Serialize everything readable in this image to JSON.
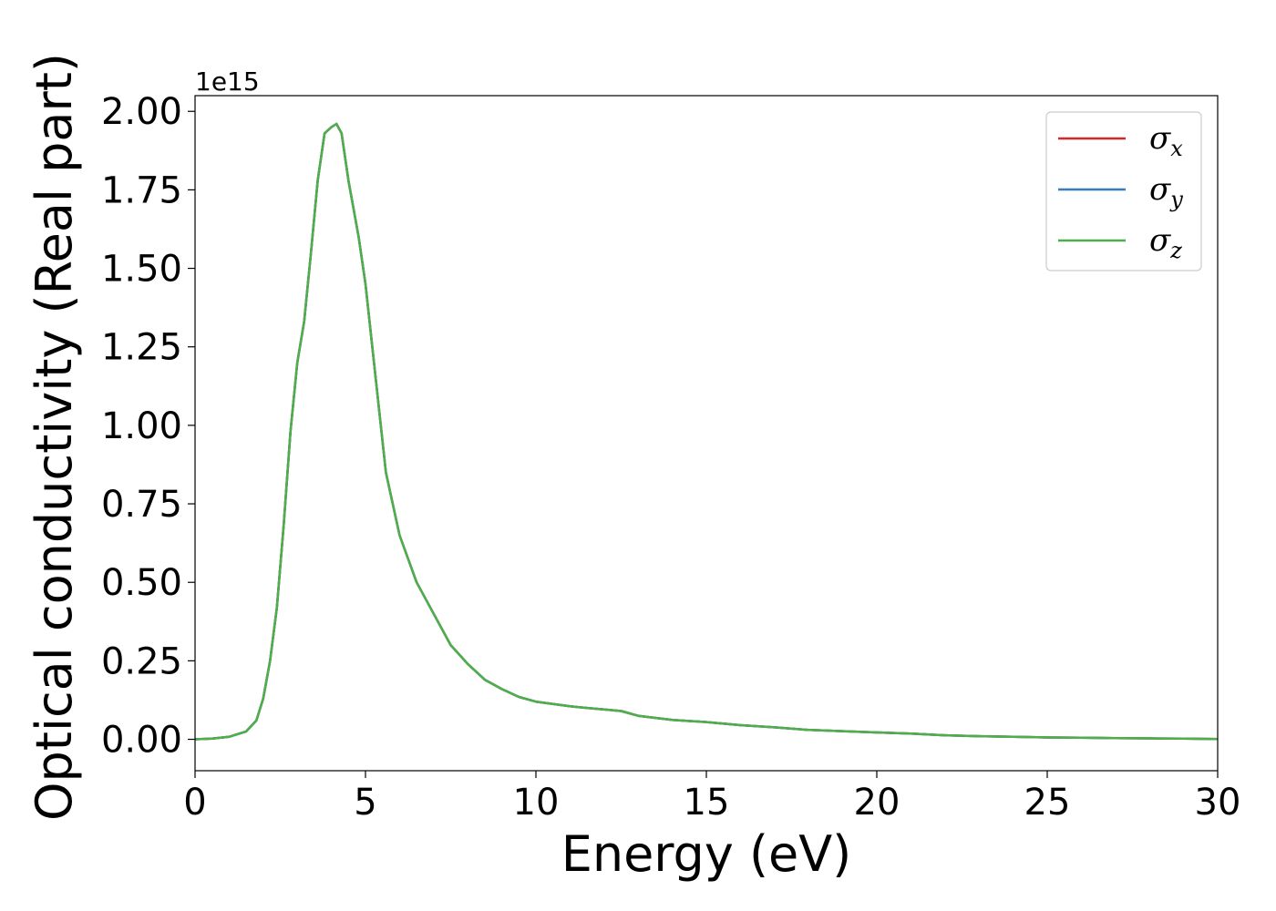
{
  "chart_data": {
    "type": "line",
    "title": "",
    "xlabel": "Energy (eV)",
    "ylabel": "Optical conductivity (Real part)",
    "y_offset_label": "1e15",
    "xlim": [
      0,
      30
    ],
    "ylim": [
      -0.1,
      2.05
    ],
    "xticks": [
      0,
      5,
      10,
      15,
      20,
      25,
      30
    ],
    "yticks": [
      0.0,
      0.25,
      0.5,
      0.75,
      1.0,
      1.25,
      1.5,
      1.75,
      2.0
    ],
    "xtick_labels": [
      "0",
      "5",
      "10",
      "15",
      "20",
      "25",
      "30"
    ],
    "ytick_labels": [
      "0.00",
      "0.25",
      "0.50",
      "0.75",
      "1.00",
      "1.25",
      "1.50",
      "1.75",
      "2.00"
    ],
    "grid": false,
    "legend_position": "top-right",
    "x": [
      0,
      0.5,
      1.0,
      1.5,
      1.8,
      2.0,
      2.2,
      2.4,
      2.6,
      2.8,
      3.0,
      3.2,
      3.4,
      3.6,
      3.8,
      4.0,
      4.15,
      4.3,
      4.5,
      4.8,
      5.0,
      5.3,
      5.6,
      6.0,
      6.5,
      7.0,
      7.5,
      8.0,
      8.5,
      9.0,
      9.5,
      10.0,
      11.0,
      11.5,
      12.0,
      12.5,
      13.0,
      14.0,
      15.0,
      16.0,
      17.0,
      18.0,
      19.0,
      20.0,
      21.0,
      22.0,
      23.0,
      24.0,
      25.0,
      26.0,
      27.0,
      28.0,
      29.0,
      30.0
    ],
    "series": [
      {
        "name": "σ_x",
        "legend_main": "σ",
        "legend_sub": "x",
        "color": "#d62728",
        "values": [
          0.0,
          0.002,
          0.008,
          0.025,
          0.06,
          0.13,
          0.25,
          0.42,
          0.68,
          0.98,
          1.2,
          1.33,
          1.55,
          1.78,
          1.93,
          1.95,
          1.96,
          1.93,
          1.78,
          1.6,
          1.45,
          1.15,
          0.85,
          0.65,
          0.5,
          0.4,
          0.3,
          0.24,
          0.19,
          0.16,
          0.135,
          0.12,
          0.105,
          0.1,
          0.095,
          0.09,
          0.075,
          0.062,
          0.055,
          0.045,
          0.038,
          0.03,
          0.026,
          0.022,
          0.018,
          0.013,
          0.01,
          0.008,
          0.006,
          0.005,
          0.004,
          0.003,
          0.002,
          0.001
        ]
      },
      {
        "name": "σ_y",
        "legend_main": "σ",
        "legend_sub": "y",
        "color": "#377eb8",
        "values": [
          0.0,
          0.002,
          0.008,
          0.025,
          0.06,
          0.13,
          0.25,
          0.42,
          0.68,
          0.98,
          1.2,
          1.33,
          1.55,
          1.78,
          1.93,
          1.95,
          1.96,
          1.93,
          1.78,
          1.6,
          1.45,
          1.15,
          0.85,
          0.65,
          0.5,
          0.4,
          0.3,
          0.24,
          0.19,
          0.16,
          0.135,
          0.12,
          0.105,
          0.1,
          0.095,
          0.09,
          0.075,
          0.062,
          0.055,
          0.045,
          0.038,
          0.03,
          0.026,
          0.022,
          0.018,
          0.013,
          0.01,
          0.008,
          0.006,
          0.005,
          0.004,
          0.003,
          0.002,
          0.001
        ]
      },
      {
        "name": "σ_z",
        "legend_main": "σ",
        "legend_sub": "z",
        "color": "#4daf4a",
        "values": [
          0.0,
          0.002,
          0.008,
          0.025,
          0.06,
          0.13,
          0.25,
          0.42,
          0.68,
          0.98,
          1.2,
          1.33,
          1.55,
          1.78,
          1.93,
          1.95,
          1.96,
          1.93,
          1.78,
          1.6,
          1.45,
          1.15,
          0.85,
          0.65,
          0.5,
          0.4,
          0.3,
          0.24,
          0.19,
          0.16,
          0.135,
          0.12,
          0.105,
          0.1,
          0.095,
          0.09,
          0.075,
          0.062,
          0.055,
          0.045,
          0.038,
          0.03,
          0.026,
          0.022,
          0.018,
          0.013,
          0.01,
          0.008,
          0.006,
          0.005,
          0.004,
          0.003,
          0.002,
          0.001
        ]
      }
    ]
  }
}
